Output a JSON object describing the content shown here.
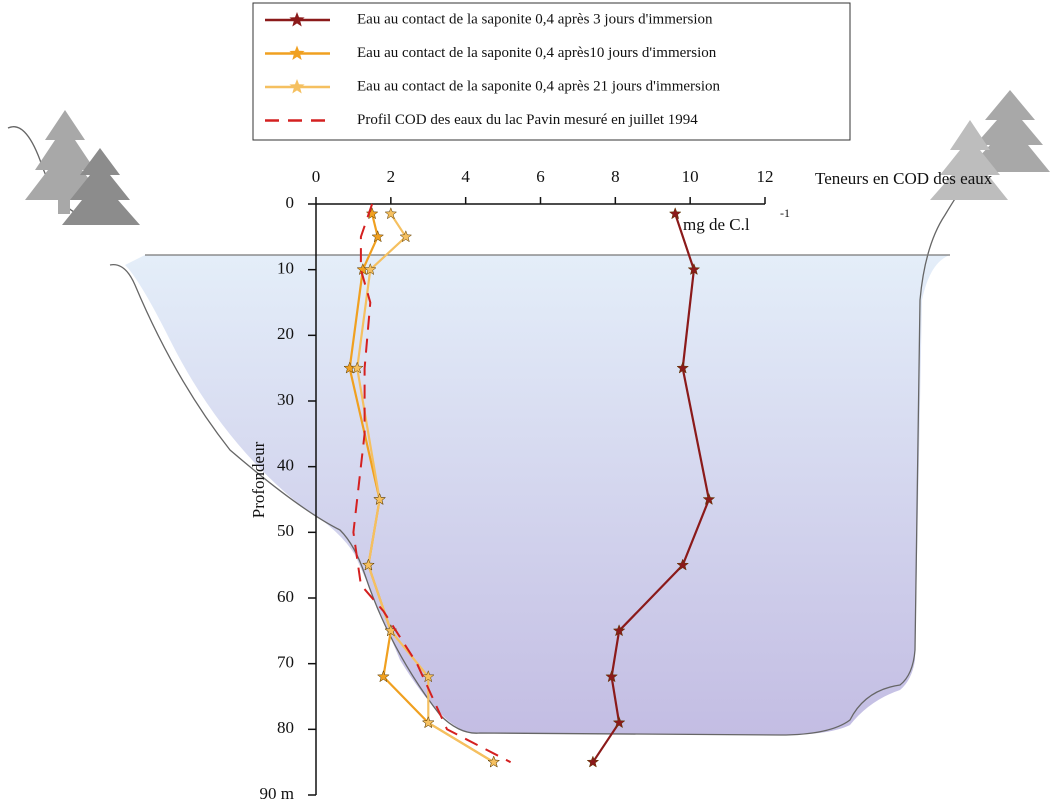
{
  "chart_data": {
    "type": "line",
    "x_axis_title": "Teneurs en COD des eaux",
    "x_unit": "mg de C.l",
    "x_unit_exponent": "-1",
    "y_axis_title": "Profondeur",
    "xlim": [
      0,
      12
    ],
    "xticks": [
      0,
      2,
      4,
      6,
      8,
      10,
      12
    ],
    "ylim": [
      0,
      90
    ],
    "yticks": [
      0,
      10,
      20,
      30,
      40,
      50,
      60,
      70,
      80,
      {
        "value": 90,
        "label": "90 m"
      }
    ],
    "y_inverted": true,
    "series": [
      {
        "name": "Eau au contact de la saponite 0,4 après 3 jours d'immersion",
        "color": "#8b1a1a",
        "marker": "star",
        "dashed": false,
        "y": [
          1.5,
          10,
          25,
          45,
          55,
          65,
          72,
          79,
          85
        ],
        "values": [
          9.6,
          10.1,
          9.8,
          10.5,
          9.8,
          8.1,
          7.9,
          8.1,
          7.4
        ]
      },
      {
        "name": "Eau au contact de la saponite 0,4 après10 jours d'immersion",
        "color": "#f0a020",
        "marker": "star",
        "dashed": false,
        "y": [
          1.5,
          5,
          10,
          25,
          45,
          55,
          65,
          72,
          79,
          85
        ],
        "values": [
          1.5,
          1.65,
          1.25,
          0.9,
          1.7,
          1.4,
          2.0,
          1.8,
          3.0,
          4.75
        ]
      },
      {
        "name": "Eau au contact de la saponite 0,4 après 21 jours d'immersion",
        "color": "#f5c060",
        "marker": "star",
        "dashed": false,
        "y": [
          1.5,
          5,
          10,
          25,
          45,
          55,
          65,
          72,
          79,
          85
        ],
        "values": [
          2.0,
          2.4,
          1.45,
          1.1,
          1.7,
          1.4,
          2.0,
          3.0,
          3.0,
          4.75
        ]
      },
      {
        "name": "Profil COD des eaux du lac Pavin mesuré en juillet 1994",
        "color": "#d42020",
        "marker": "none",
        "dashed": true,
        "y": [
          0,
          5,
          10,
          15,
          25,
          35,
          50,
          58,
          62,
          70,
          80,
          85
        ],
        "values": [
          1.5,
          1.2,
          1.2,
          1.45,
          1.3,
          1.3,
          1.0,
          1.2,
          1.8,
          2.7,
          3.5,
          5.2
        ]
      }
    ]
  }
}
